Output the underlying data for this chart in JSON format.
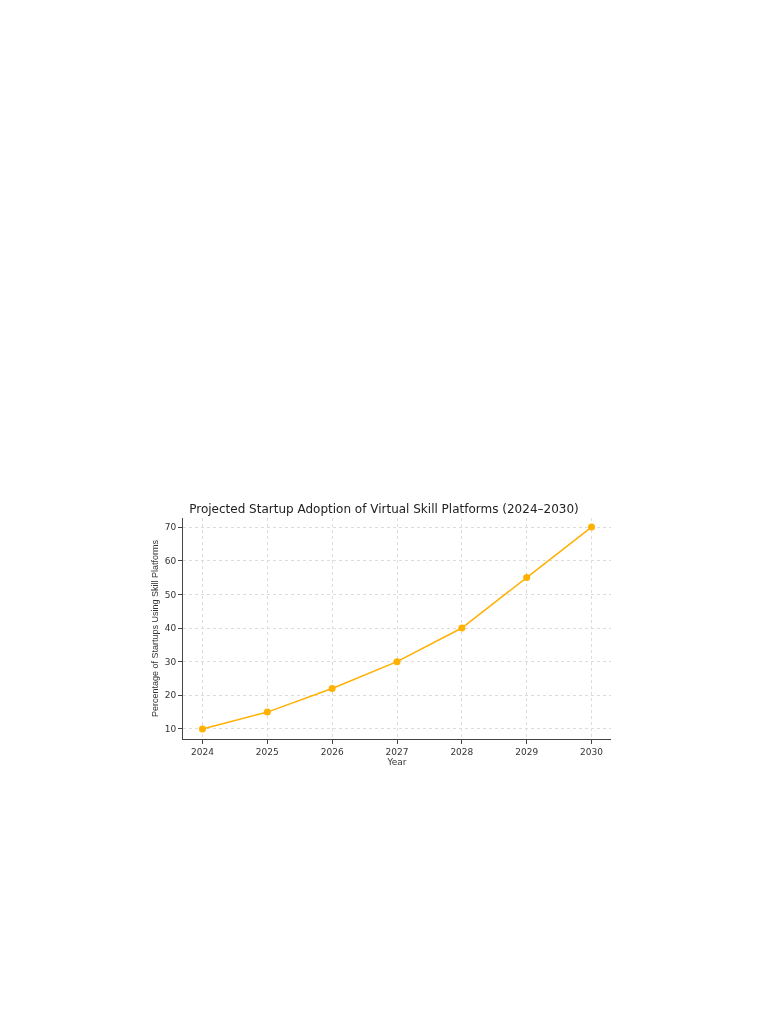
{
  "chart_data": {
    "type": "line",
    "title": "Projected Startup Adoption of Virtual Skill Platforms (2024–2030)",
    "xlabel": "Year",
    "ylabel": "Percentage of Startups Using Skill Platforms",
    "x": [
      2024,
      2025,
      2026,
      2027,
      2028,
      2029,
      2030
    ],
    "series": [
      {
        "color": "#ffb000",
        "values": [
          10,
          15,
          22,
          30,
          40,
          55,
          70
        ]
      }
    ],
    "xlim": [
      2023.7,
      2030.3
    ],
    "xticks": [
      2024,
      2025,
      2026,
      2027,
      2028,
      2029,
      2030
    ],
    "ylim": [
      7,
      72.7
    ],
    "yticks": [
      10,
      20,
      30,
      40,
      50,
      60,
      70
    ],
    "grid": true,
    "marker": "circle",
    "line_style": "solid"
  }
}
